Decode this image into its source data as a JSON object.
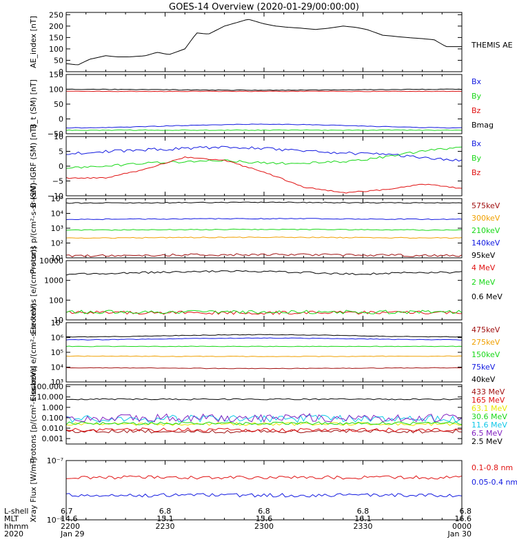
{
  "title": "GOES-14 Overview (2020-01-29/00:00:00)",
  "colors": {
    "black": "#000000",
    "red": "#e01010",
    "green": "#18d818",
    "blue": "#1018e0",
    "orange": "#f0a000",
    "yellow": "#e8e800",
    "cyan": "#10c8e8",
    "purple": "#8020c0",
    "darkred": "#a01010"
  },
  "chart_data": [
    {
      "type": "line",
      "ylabel": "AE_index [nT]",
      "yscale": "linear",
      "ylim": [
        0,
        260
      ],
      "yticks": [
        0,
        50,
        100,
        150,
        200,
        250
      ],
      "ytick_labels": [
        "0",
        "50",
        "100",
        "150",
        "200",
        "250"
      ],
      "series": [
        {
          "name": "THEMIS AE",
          "color": "black",
          "mode": "points",
          "x": [
            0,
            0.03,
            0.06,
            0.1,
            0.13,
            0.16,
            0.2,
            0.23,
            0.26,
            0.3,
            0.33,
            0.36,
            0.4,
            0.43,
            0.46,
            0.5,
            0.53,
            0.56,
            0.6,
            0.63,
            0.66,
            0.7,
            0.73,
            0.76,
            0.8,
            0.83,
            0.86,
            0.9,
            0.93,
            0.96,
            1.0
          ],
          "y": [
            35,
            30,
            55,
            70,
            65,
            65,
            70,
            85,
            75,
            100,
            170,
            165,
            200,
            215,
            230,
            210,
            200,
            195,
            190,
            185,
            190,
            200,
            195,
            185,
            160,
            155,
            150,
            145,
            140,
            110,
            110
          ]
        }
      ]
    },
    {
      "type": "line",
      "ylabel": "B_t (SM) [nT]",
      "yscale": "linear",
      "ylim": [
        -50,
        150
      ],
      "yticks": [
        -50,
        0,
        50,
        100,
        150
      ],
      "ytick_labels": [
        "−50",
        "0",
        "50",
        "100",
        "150"
      ],
      "series": [
        {
          "name": "Bx",
          "color": "blue",
          "base": -30,
          "drift": 12,
          "amp": 1,
          "seed": 1
        },
        {
          "name": "By",
          "color": "green",
          "base": -38,
          "drift": 0,
          "amp": 1,
          "seed": 2
        },
        {
          "name": "Bz",
          "color": "red",
          "base": 93,
          "drift": 0,
          "amp": 1,
          "seed": 3
        },
        {
          "name": "Bmag",
          "color": "black",
          "base": 100,
          "drift": -3,
          "amp": 1,
          "seed": 4
        }
      ]
    },
    {
      "type": "line",
      "ylabel": "B (SM)-IGRF (SM) [nT]",
      "yscale": "linear",
      "ylim": [
        -10,
        10
      ],
      "yticks": [
        -10,
        -5,
        0,
        5,
        10
      ],
      "ytick_labels": [
        "−10",
        "−5",
        "0",
        "5",
        "10"
      ],
      "series": [
        {
          "name": "Bx",
          "color": "blue",
          "mode": "points",
          "noise": 0.5,
          "seed": 5,
          "x": [
            0,
            0.1,
            0.2,
            0.3,
            0.4,
            0.5,
            0.6,
            0.7,
            0.8,
            0.9,
            1.0
          ],
          "y": [
            4,
            5,
            5.5,
            6,
            6.5,
            6,
            5,
            4.5,
            4,
            3,
            2
          ]
        },
        {
          "name": "By",
          "color": "green",
          "mode": "points",
          "noise": 0.4,
          "seed": 6,
          "x": [
            0,
            0.1,
            0.2,
            0.3,
            0.4,
            0.5,
            0.6,
            0.7,
            0.8,
            0.9,
            1.0
          ],
          "y": [
            -0.5,
            0,
            1,
            1.5,
            2,
            1,
            1,
            1.5,
            3,
            5,
            6.5
          ]
        },
        {
          "name": "Bz",
          "color": "red",
          "mode": "points",
          "noise": 0.2,
          "seed": 7,
          "x": [
            0,
            0.1,
            0.2,
            0.3,
            0.4,
            0.5,
            0.6,
            0.7,
            0.8,
            0.9,
            1.0
          ],
          "y": [
            -4,
            -4,
            -1,
            3,
            2,
            -2,
            -7,
            -9,
            -8,
            -6,
            -7.5
          ]
        }
      ]
    },
    {
      "type": "line",
      "ylabel": "Protons p/(cm²-s-sr-keV)",
      "yscale": "log",
      "ylim": [
        10,
        100000
      ],
      "yticks": [
        10,
        100,
        1000,
        10000,
        100000
      ],
      "ytick_labels": [
        "10¹",
        "10²",
        "10³",
        "10⁴",
        "10⁵"
      ],
      "series": [
        {
          "name": "575keV",
          "color": "darkred",
          "base": 14,
          "drift": 1.2,
          "amp": 0.08,
          "seed": 8
        },
        {
          "name": "300keV",
          "color": "orange",
          "base": 220,
          "drift": 1.1,
          "amp": 0.03,
          "seed": 9
        },
        {
          "name": "210keV",
          "color": "green",
          "base": 750,
          "drift": 1.1,
          "amp": 0.03,
          "seed": 10
        },
        {
          "name": "140keV",
          "color": "blue",
          "base": 4000,
          "drift": 1.1,
          "amp": 0.03,
          "seed": 11
        },
        {
          "name": "95keV",
          "color": "black",
          "base": 50000,
          "drift": 1.1,
          "amp": 0.03,
          "seed": 12
        }
      ]
    },
    {
      "type": "line",
      "ylabel": "Electrons [e/(cm²-s-sr)]",
      "yscale": "log",
      "ylim": [
        10,
        10000
      ],
      "yticks": [
        10,
        100,
        1000,
        10000
      ],
      "ytick_labels": [
        "10",
        "100",
        "1000",
        "10000"
      ],
      "series": [
        {
          "name": "4 MeV",
          "color": "red",
          "base": 23,
          "drift": 1,
          "amp": 0.09,
          "seed": 13
        },
        {
          "name": "2 MeV",
          "color": "green",
          "base": 25,
          "drift": 1,
          "amp": 0.09,
          "seed": 14
        },
        {
          "name": "0.6 MeV",
          "color": "black",
          "mode": "points",
          "noise": 0.05,
          "seed": 15,
          "x": [
            0,
            0.2,
            0.4,
            0.5,
            0.6,
            0.75,
            0.85,
            1.0
          ],
          "y": [
            2000,
            2500,
            3000,
            2800,
            2500,
            2000,
            2500,
            2600
          ]
        }
      ]
    },
    {
      "type": "line",
      "ylabel": "Electrons e/(cm²-s-sr-keV)",
      "yscale": "log",
      "ylim": [
        1000,
        10000000
      ],
      "yticks": [
        1000,
        10000,
        100000,
        1000000,
        10000000
      ],
      "ytick_labels": [
        "10³",
        "10⁴",
        "10⁵",
        "10⁶",
        "10⁷"
      ],
      "series": [
        {
          "name": "475keV",
          "color": "darkred",
          "base": 9000,
          "drift": 0.9,
          "amp": 0.02,
          "seed": 16
        },
        {
          "name": "275keV",
          "color": "orange",
          "base": 55000,
          "drift": 0.95,
          "amp": 0.02,
          "seed": 17
        },
        {
          "name": "150keV",
          "color": "green",
          "base": 250000,
          "drift": 1.0,
          "amp": 0.02,
          "seed": 18
        },
        {
          "name": "75keV",
          "color": "blue",
          "base": 700000,
          "drift": 1.3,
          "amp": 0.02,
          "seed": 19
        },
        {
          "name": "40keV",
          "color": "black",
          "base": 1100000,
          "drift": 1.4,
          "amp": 0.02,
          "seed": 20
        }
      ]
    },
    {
      "type": "line",
      "ylabel": "Protons [p/(cm²-s-sr-keV)]",
      "yscale": "log",
      "ylim": [
        0.0003,
        150
      ],
      "yticks": [
        0.001,
        0.01,
        0.1,
        1,
        10,
        100
      ],
      "ytick_labels": [
        "0.001",
        "0.010",
        "0.100",
        "1.000",
        "10.000",
        "100.000"
      ],
      "series": [
        {
          "name": "433 MeV",
          "color": "darkred",
          "base": 0.005,
          "drift": 1,
          "amp": 0.18,
          "seed": 21
        },
        {
          "name": "165 MeV",
          "color": "red",
          "base": 0.007,
          "drift": 1,
          "amp": 0.18,
          "seed": 22
        },
        {
          "name": "63.1 MeV",
          "color": "yellow",
          "base": 0.025,
          "drift": 1,
          "amp": 0.15,
          "seed": 23
        },
        {
          "name": "30.6 MeV",
          "color": "green",
          "base": 0.03,
          "drift": 1,
          "amp": 0.15,
          "seed": 24
        },
        {
          "name": "11.6 MeV",
          "color": "cyan",
          "base": 0.08,
          "drift": 1,
          "amp": 0.35,
          "seed": 25
        },
        {
          "name": "6.5 MeV",
          "color": "purple",
          "base": 0.1,
          "drift": 1,
          "amp": 0.4,
          "seed": 26
        },
        {
          "name": "2.5 MeV",
          "color": "black",
          "base": 6,
          "drift": 1,
          "amp": 0.06,
          "seed": 27
        }
      ]
    },
    {
      "type": "line",
      "ylabel": "Xray Flux [W/m²]",
      "yscale": "log",
      "ylim": [
        1e-08,
        1e-07
      ],
      "yticks": [
        1e-08,
        1e-07
      ],
      "ytick_labels": [
        "10⁻⁸",
        "10⁻⁷"
      ],
      "series": [
        {
          "name": "0.1-0.8 nm",
          "color": "red",
          "base": 5.2e-08,
          "drift": 1,
          "amp": 0.03,
          "seed": 28
        },
        {
          "name": "0.05-0.4 nm",
          "color": "blue",
          "base": 2.6e-08,
          "drift": 1,
          "amp": 0.03,
          "seed": 29
        }
      ]
    }
  ],
  "xaxis": {
    "row_labels": [
      "L-shell",
      "MLT",
      "hhmm",
      "2020"
    ],
    "ticks": [
      {
        "pos": 0,
        "lines": [
          "6.7",
          "14.6",
          "2200",
          "Jan 29"
        ]
      },
      {
        "pos": 0.25,
        "lines": [
          "6.8",
          "15.1",
          "2230",
          ""
        ]
      },
      {
        "pos": 0.5,
        "lines": [
          "6.8",
          "15.6",
          "2300",
          ""
        ]
      },
      {
        "pos": 0.75,
        "lines": [
          "6.8",
          "16.1",
          "2330",
          ""
        ]
      },
      {
        "pos": 1,
        "lines": [
          "6.8",
          "16.6",
          "0000",
          "Jan 30"
        ]
      }
    ]
  }
}
